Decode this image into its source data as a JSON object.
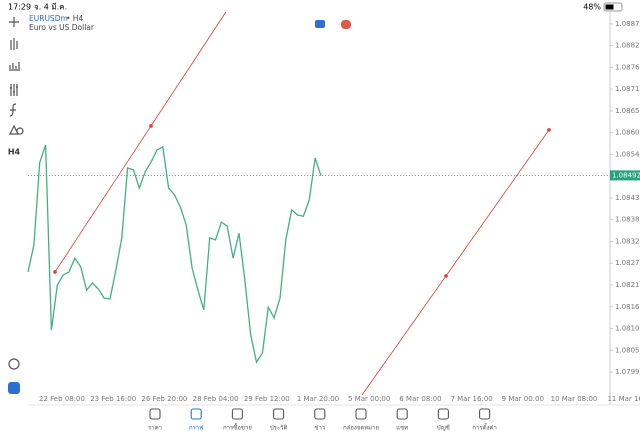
{
  "status_bar": {
    "time": "17:29",
    "date": "จ. 4 มี.ค.",
    "battery": "48%"
  },
  "toolbar": {
    "timeframe": "H4"
  },
  "chart_data": {
    "type": "line",
    "symbol": "EURUSDm",
    "timeframe": "• H4",
    "description": "Euro vs US Dollar",
    "color": "#3fb27f",
    "values": [
      1.08248,
      1.08316,
      1.08524,
      1.08569,
      1.08101,
      1.08215,
      1.0824,
      1.08248,
      1.08283,
      1.08261,
      1.08202,
      1.0822,
      1.08205,
      1.08182,
      1.0818,
      1.08253,
      1.08334,
      1.08511,
      1.08506,
      1.0846,
      1.08501,
      1.08526,
      1.08556,
      1.08564,
      1.0846,
      1.08443,
      1.08412,
      1.08367,
      1.08258,
      1.08202,
      1.08152,
      1.08334,
      1.08329,
      1.08374,
      1.08364,
      1.08283,
      1.08346,
      1.08228,
      1.08089,
      1.0802,
      1.08043,
      1.08159,
      1.08132,
      1.08182,
      1.08329,
      1.08405,
      1.08392,
      1.08389,
      1.0843,
      1.08536,
      1.08491
    ],
    "current_price": 1.08492,
    "current_color": "#26a17b",
    "trendlines": [
      {
        "color": "#e53935",
        "values": [
          1.08248,
          1.08617
        ]
      },
      {
        "color": "#e53935",
        "values": [
          1.08238,
          1.08607
        ]
      }
    ],
    "ylim": [
      1.07937,
      1.08905
    ],
    "yticks": [
      1.08875,
      {
        "value": 1.0882,
        "label": "1.08820"
      },
      1.08765,
      {
        "value": 1.0871,
        "label": "1.08710"
      },
      1.08655,
      {
        "value": 1.086,
        "label": "1.08600"
      },
      1.08545,
      1.08435,
      {
        "value": 1.0838,
        "label": "1.08380"
      },
      1.08325,
      {
        "value": 1.0827,
        "label": "1.08270"
      },
      1.08215,
      {
        "value": 1.0816,
        "label": "1.08160"
      },
      1.08105,
      {
        "value": 1.0805,
        "label": "1.08050"
      },
      1.07995
    ],
    "xtick_labels": [
      "22 Feb 08:00",
      "23 Feb 16:00",
      "26 Feb 20:00",
      "28 Feb 04:00",
      "29 Feb 12:00",
      "1 Mar 20:00",
      "5 Mar 00:00",
      "6 Mar 08:00",
      "7 Mar 16:00",
      "9 Mar 00:00",
      "10 Mar 08:00",
      "11 Mar 16"
    ]
  },
  "tabs": [
    "ราคา",
    "กราฟ",
    "การซื้อขาย",
    "ประวัติ",
    "ข่าว",
    "กล่องจดหมาย",
    "แชท",
    "บัญชี",
    "การตั้งค่า"
  ]
}
